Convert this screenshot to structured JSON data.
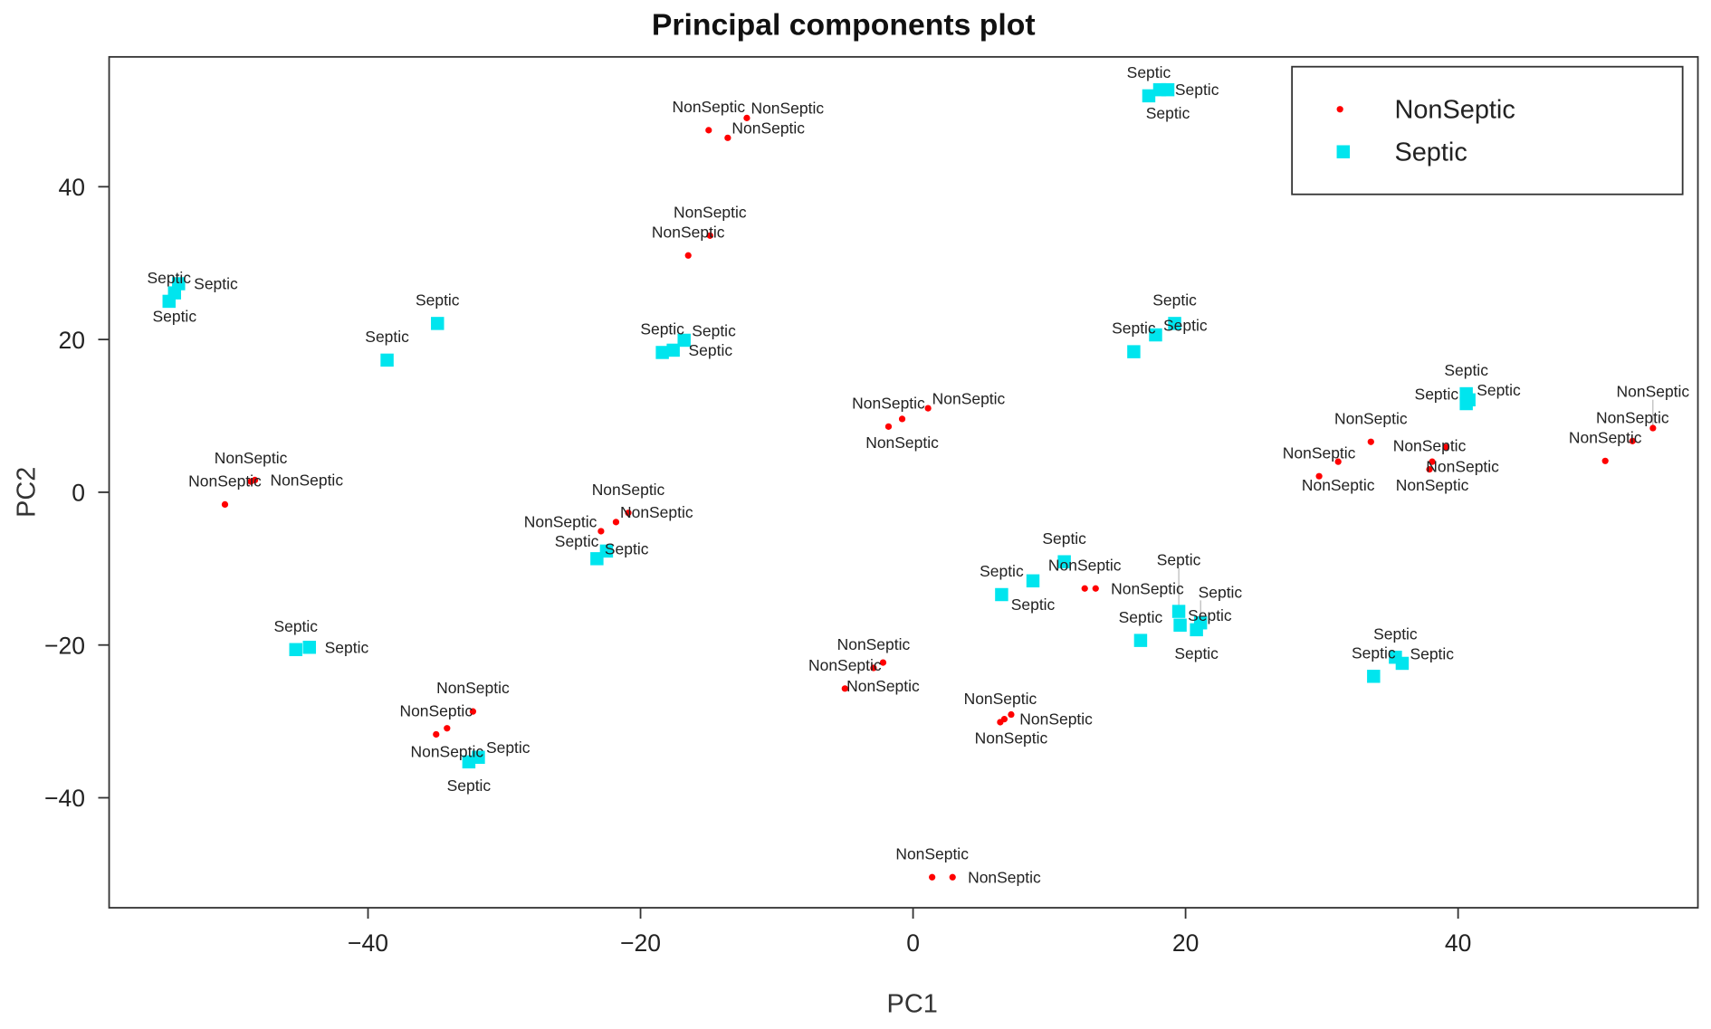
{
  "chart_data": {
    "type": "scatter",
    "title": "Principal components plot",
    "xlabel": "PC1",
    "ylabel": "PC2",
    "xlim": [
      -59,
      57.6
    ],
    "ylim": [
      -54.4,
      57
    ],
    "xticks": [
      -40,
      -20,
      0,
      20,
      40
    ],
    "yticks": [
      -40,
      -20,
      0,
      20,
      40
    ],
    "xtick_labels": [
      "−40",
      "−20",
      "0",
      "20",
      "40"
    ],
    "ytick_labels": [
      "−40",
      "−20",
      "0",
      "20",
      "40"
    ],
    "grid": false,
    "legend_position": "top-right",
    "series": [
      {
        "name": "NonSeptic",
        "color": "#ff0000",
        "marker": "circle",
        "points": [
          [
            -15.0,
            47.4
          ],
          [
            -13.6,
            46.4
          ],
          [
            -12.2,
            49.0
          ],
          [
            -16.5,
            31.0
          ],
          [
            -14.9,
            33.6
          ],
          [
            -50.5,
            -1.6
          ],
          [
            -48.6,
            1.4
          ],
          [
            -48.3,
            1.6
          ],
          [
            -1.8,
            8.6
          ],
          [
            -0.8,
            9.6
          ],
          [
            1.1,
            11.0
          ],
          [
            -20.9,
            -2.7
          ],
          [
            -21.8,
            -3.9
          ],
          [
            -22.9,
            -5.1
          ],
          [
            29.8,
            2.1
          ],
          [
            31.2,
            4.0
          ],
          [
            33.6,
            6.6
          ],
          [
            37.9,
            3.0
          ],
          [
            38.1,
            4.0
          ],
          [
            39.1,
            5.9
          ],
          [
            50.8,
            4.1
          ],
          [
            52.8,
            6.7
          ],
          [
            54.3,
            8.4
          ],
          [
            12.6,
            -12.6
          ],
          [
            13.4,
            -12.6
          ],
          [
            -5.0,
            -25.7
          ],
          [
            -2.9,
            -23.0
          ],
          [
            -2.2,
            -22.3
          ],
          [
            6.4,
            -30.1
          ],
          [
            6.7,
            -29.7
          ],
          [
            7.2,
            -29.1
          ],
          [
            -35.0,
            -31.7
          ],
          [
            -34.2,
            -30.9
          ],
          [
            -32.3,
            -28.7
          ],
          [
            1.4,
            -50.4
          ],
          [
            2.9,
            -50.4
          ]
        ]
      },
      {
        "name": "Septic",
        "color": "#00e5ee",
        "marker": "square",
        "points": [
          [
            -54.6,
            25.0
          ],
          [
            -54.2,
            26.1
          ],
          [
            -53.9,
            27.3
          ],
          [
            -34.9,
            22.1
          ],
          [
            -38.6,
            17.3
          ],
          [
            -18.4,
            18.3
          ],
          [
            -17.6,
            18.6
          ],
          [
            -16.8,
            19.9
          ],
          [
            17.3,
            51.9
          ],
          [
            18.1,
            52.7
          ],
          [
            18.7,
            52.7
          ],
          [
            16.2,
            18.4
          ],
          [
            17.8,
            20.6
          ],
          [
            19.2,
            22.1
          ],
          [
            40.6,
            12.9
          ],
          [
            40.8,
            12.1
          ],
          [
            40.6,
            11.6
          ],
          [
            -23.2,
            -8.7
          ],
          [
            -22.5,
            -7.7
          ],
          [
            -45.3,
            -20.6
          ],
          [
            -44.3,
            -20.3
          ],
          [
            -32.6,
            -35.3
          ],
          [
            -31.9,
            -34.7
          ],
          [
            6.5,
            -13.4
          ],
          [
            8.8,
            -11.6
          ],
          [
            11.1,
            -9.1
          ],
          [
            16.7,
            -19.4
          ],
          [
            19.6,
            -17.4
          ],
          [
            20.8,
            -18.0
          ],
          [
            21.1,
            -17.1
          ],
          [
            19.5,
            -15.6
          ],
          [
            33.8,
            -24.1
          ],
          [
            35.9,
            -22.4
          ],
          [
            35.4,
            -21.6
          ]
        ]
      }
    ]
  }
}
